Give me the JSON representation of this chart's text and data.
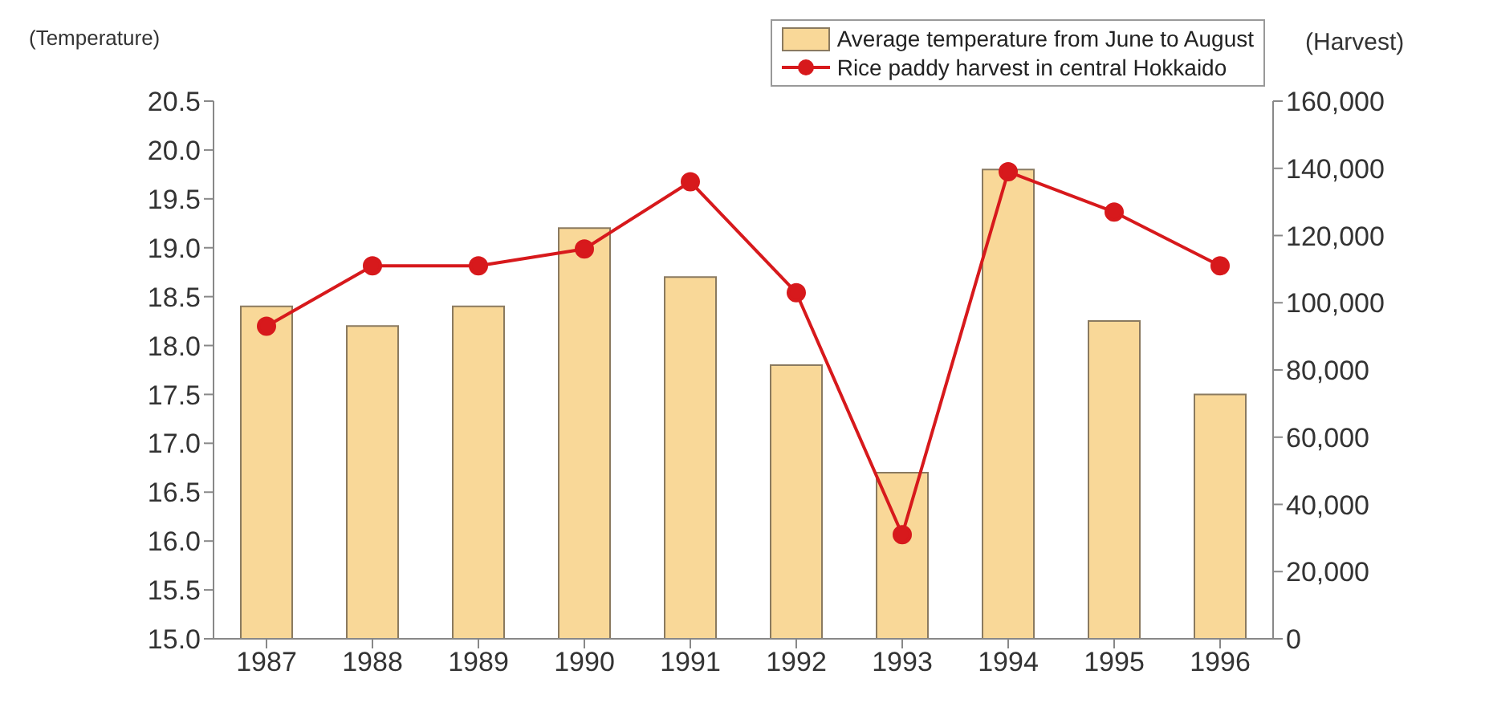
{
  "chart_data": {
    "type": "bar",
    "ylabel": "(Temperature)",
    "y2label": "(Harvest)",
    "categories": [
      "1987",
      "1988",
      "1989",
      "1990",
      "1991",
      "1992",
      "1993",
      "1994",
      "1995",
      "1996"
    ],
    "series": [
      {
        "name": "Average temperature from June to August",
        "color": "#f9d898",
        "values": [
          18.4,
          18.2,
          18.4,
          19.2,
          18.7,
          17.8,
          16.7,
          19.8,
          18.25,
          17.5
        ]
      },
      {
        "name": "Rice paddy harvest in central Hokkaido",
        "type": "line",
        "axis": "y2",
        "color": "#d7191c",
        "values": [
          93000,
          111000,
          111000,
          116000,
          136000,
          103000,
          31000,
          139000,
          127000,
          111000
        ]
      }
    ],
    "ylim": [
      15.0,
      20.5
    ],
    "yticks": [
      {
        "value": 15,
        "label": "15.0"
      },
      {
        "value": 15.5,
        "label": "15.5"
      },
      {
        "value": 16,
        "label": "16.0"
      },
      {
        "value": 16.5,
        "label": "16.5"
      },
      {
        "value": 17,
        "label": "17.0"
      },
      {
        "value": 17.5,
        "label": "17.5"
      },
      {
        "value": 18,
        "label": "18.0"
      },
      {
        "value": 18.5,
        "label": "18.5"
      },
      {
        "value": 19,
        "label": "19.0"
      },
      {
        "value": 19.5,
        "label": "19.5"
      },
      {
        "value": 20,
        "label": "20.0"
      },
      {
        "value": 20.5,
        "label": "20.5"
      }
    ],
    "y2lim": [
      0,
      160000
    ],
    "y2ticks": [
      0,
      {
        "value": 20000,
        "label": "20,000"
      },
      {
        "value": 40000,
        "label": "40,000"
      },
      {
        "value": 60000,
        "label": "60,000"
      },
      {
        "value": 80000,
        "label": "80,000"
      },
      {
        "value": 100000,
        "label": "100,000"
      },
      {
        "value": 120000,
        "label": "120,000"
      },
      {
        "value": 140000,
        "label": "140,000"
      },
      {
        "value": 160000,
        "label": "160,000"
      }
    ],
    "legend": "top right",
    "marker": "circle",
    "grid": false
  }
}
